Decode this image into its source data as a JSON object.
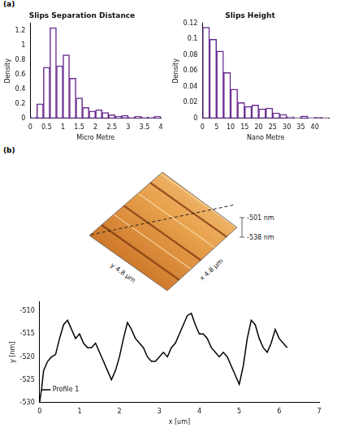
{
  "panels": [
    "(a)",
    "(b)"
  ],
  "chart_data": [
    {
      "type": "histogram",
      "title": "Slips Separation Distance",
      "x_label": "Micro Metre",
      "y_label": "Density",
      "bins": [
        0,
        0.2,
        0.4,
        0.6,
        0.8,
        1,
        1.2,
        1.4,
        1.6,
        1.8,
        2,
        2.2,
        2.4,
        2.6,
        2.8,
        3,
        3.2,
        3.4,
        3.6,
        3.8,
        4
      ],
      "values": [
        0.02,
        0.2,
        0.7,
        1.24,
        0.72,
        0.87,
        0.55,
        0.28,
        0.15,
        0.1,
        0.12,
        0.08,
        0.05,
        0.03,
        0.04,
        0.02,
        0.03,
        0.02,
        0.02,
        0.03
      ],
      "color": "#6a2c91",
      "xlim": [
        0,
        4
      ],
      "xticks": [
        0,
        0.5,
        1,
        1.5,
        2,
        2.5,
        3,
        3.5,
        4
      ],
      "ylim": [
        0,
        1.3
      ],
      "yticks": [
        0,
        0.2,
        0.4,
        0.6,
        0.8,
        1,
        1.2
      ],
      "grid": false
    },
    {
      "type": "histogram",
      "title": "Slips Height",
      "x_label": "Nano Metre",
      "y_label": "Density",
      "bins": [
        0,
        2.5,
        5,
        7.5,
        10,
        12.5,
        15,
        17.5,
        20,
        22.5,
        25,
        27.5,
        30,
        32.5,
        35,
        37.5,
        40,
        42.5,
        45
      ],
      "values": [
        0.115,
        0.1,
        0.085,
        0.058,
        0.037,
        0.02,
        0.015,
        0.017,
        0.012,
        0.013,
        0.007,
        0.005,
        0.002,
        0.001,
        0.003,
        0.001,
        0.0015,
        0.001
      ],
      "color": "#6a2c91",
      "xlim": [
        0,
        45
      ],
      "xticks": [
        0,
        5,
        10,
        15,
        20,
        25,
        30,
        35,
        40
      ],
      "ylim": [
        0,
        0.12
      ],
      "yticks": [
        0,
        0.02,
        0.04,
        0.06,
        0.08,
        0.1,
        0.12
      ],
      "grid": false
    },
    {
      "type": "line",
      "x_label": "x [um]",
      "y_label": "y [nm]",
      "x": [
        0,
        0.05,
        0.1,
        0.2,
        0.3,
        0.4,
        0.5,
        0.6,
        0.7,
        0.8,
        0.9,
        1.0,
        1.1,
        1.2,
        1.3,
        1.4,
        1.5,
        1.6,
        1.7,
        1.8,
        1.9,
        2.0,
        2.1,
        2.2,
        2.3,
        2.4,
        2.5,
        2.6,
        2.7,
        2.8,
        2.9,
        3.0,
        3.1,
        3.2,
        3.3,
        3.4,
        3.5,
        3.6,
        3.7,
        3.8,
        3.9,
        4.0,
        4.1,
        4.2,
        4.3,
        4.4,
        4.5,
        4.6,
        4.7,
        4.8,
        4.9,
        5.0,
        5.1,
        5.2,
        5.3,
        5.4,
        5.5,
        5.6,
        5.7,
        5.8,
        5.9,
        6.0,
        6.1,
        6.2
      ],
      "series": [
        {
          "name": "Profile 1",
          "color": "#000000",
          "values": [
            -530,
            -527,
            -523,
            -521,
            -520,
            -519.5,
            -516,
            -513,
            -512,
            -514,
            -516,
            -515,
            -517,
            -518,
            -518,
            -517,
            -519,
            -521,
            -523,
            -525,
            -523,
            -520,
            -516,
            -512.5,
            -514,
            -516,
            -517,
            -518,
            -520,
            -521,
            -521,
            -520,
            -519,
            -520,
            -518,
            -517,
            -515,
            -513,
            -511,
            -510.5,
            -513,
            -515,
            -515,
            -516,
            -518,
            -519,
            -520,
            -519,
            -520,
            -522,
            -524,
            -526,
            -522,
            -516,
            -512,
            -513,
            -516,
            -518,
            -519,
            -517,
            -514,
            -516,
            -517,
            -518
          ]
        }
      ],
      "xlim": [
        0,
        7
      ],
      "xticks": [
        0,
        1,
        2,
        3,
        4,
        5,
        6,
        7
      ],
      "ylim": [
        -530,
        -508
      ],
      "yticks": [
        -530,
        -525,
        -520,
        -515,
        -510
      ],
      "legend": "upper right",
      "grid": false
    }
  ],
  "afm_image": {
    "x_label": "x 4.8 µm",
    "y_label": "y 4.8 µm",
    "z_max": "-501 nm",
    "z_min": "-538 nm"
  }
}
